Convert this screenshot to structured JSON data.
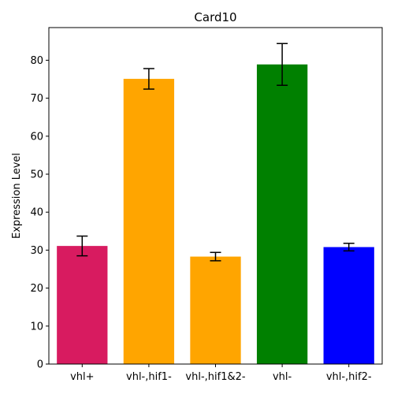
{
  "chart_data": {
    "type": "bar",
    "title": "Card10",
    "xlabel": "",
    "ylabel": "Expression Level",
    "ylim": [
      0,
      88.6
    ],
    "yticks": [
      0,
      10,
      20,
      30,
      40,
      50,
      60,
      70,
      80
    ],
    "grid": false,
    "categories": [
      "vhl+",
      "vhl-,hif1-",
      "vhl-,hif1&2-",
      "vhl-",
      "vhl-,hif2-"
    ],
    "values": [
      31.1,
      75.1,
      28.3,
      78.9,
      30.8
    ],
    "errors": [
      2.6,
      2.7,
      1.1,
      5.5,
      1.0
    ],
    "colors": [
      "#d81b60",
      "#ffa500",
      "#ffa500",
      "#008000",
      "#0000ff"
    ]
  }
}
